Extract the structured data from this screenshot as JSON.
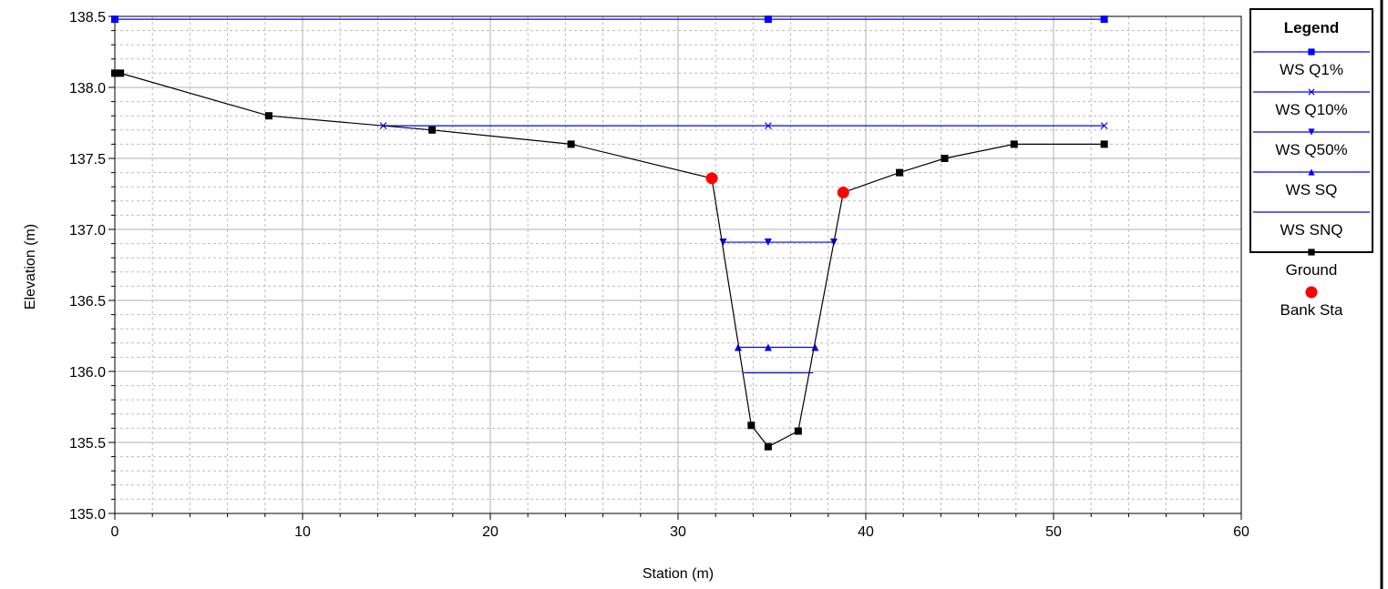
{
  "chart_data": {
    "type": "line",
    "xlabel": "Station (m)",
    "ylabel": "Elevation (m)",
    "xlim": [
      0,
      60
    ],
    "ylim": [
      135.0,
      138.5
    ],
    "x_ticks": [
      0,
      10,
      20,
      30,
      40,
      50,
      60
    ],
    "y_ticks": [
      135.0,
      135.5,
      136.0,
      136.5,
      137.0,
      137.5,
      138.0,
      138.5
    ],
    "x_tick_labels": [
      "0",
      "10",
      "20",
      "30",
      "40",
      "50",
      "60"
    ],
    "y_tick_labels": [
      "135.0",
      "135.5",
      "136.0",
      "136.5",
      "137.0",
      "137.5",
      "138.0",
      "138.5"
    ],
    "grid": true,
    "legend_title": "Legend",
    "legend_position": "right",
    "series": [
      {
        "name": "WS Q1%",
        "color": "#0000ff",
        "marker": "square",
        "x": [
          0.0,
          34.8,
          52.7
        ],
        "y": [
          138.48,
          138.48,
          138.48
        ]
      },
      {
        "name": "WS Q10%",
        "color": "#0000ff",
        "marker": "x",
        "x": [
          14.3,
          34.8,
          52.7
        ],
        "y": [
          137.73,
          137.73,
          137.73
        ]
      },
      {
        "name": "WS Q50%",
        "color": "#0000ff",
        "marker": "triangle-down",
        "x": [
          32.4,
          34.8,
          38.3
        ],
        "y": [
          136.91,
          136.91,
          136.91
        ]
      },
      {
        "name": "WS SQ",
        "color": "#0000ff",
        "marker": "triangle-up",
        "x": [
          33.2,
          34.8,
          37.3
        ],
        "y": [
          136.17,
          136.17,
          136.17
        ]
      },
      {
        "name": "WS SNQ",
        "color": "#0000ff",
        "marker": "none",
        "x": [
          33.5,
          37.2
        ],
        "y": [
          135.99,
          135.99
        ]
      },
      {
        "name": "Ground",
        "color": "#000000",
        "marker": "square",
        "x": [
          0.0,
          0.3,
          8.2,
          16.9,
          24.3,
          31.8,
          33.9,
          34.8,
          36.4,
          38.8,
          41.8,
          44.2,
          47.9,
          52.7
        ],
        "y": [
          138.1,
          138.1,
          137.8,
          137.7,
          137.6,
          137.36,
          135.62,
          135.47,
          135.58,
          137.26,
          137.4,
          137.5,
          137.6,
          137.6
        ]
      },
      {
        "name": "Bank Sta",
        "color": "#ff0000",
        "marker": "circle",
        "x": [
          31.8,
          38.8
        ],
        "y": [
          137.36,
          137.26
        ]
      }
    ]
  }
}
